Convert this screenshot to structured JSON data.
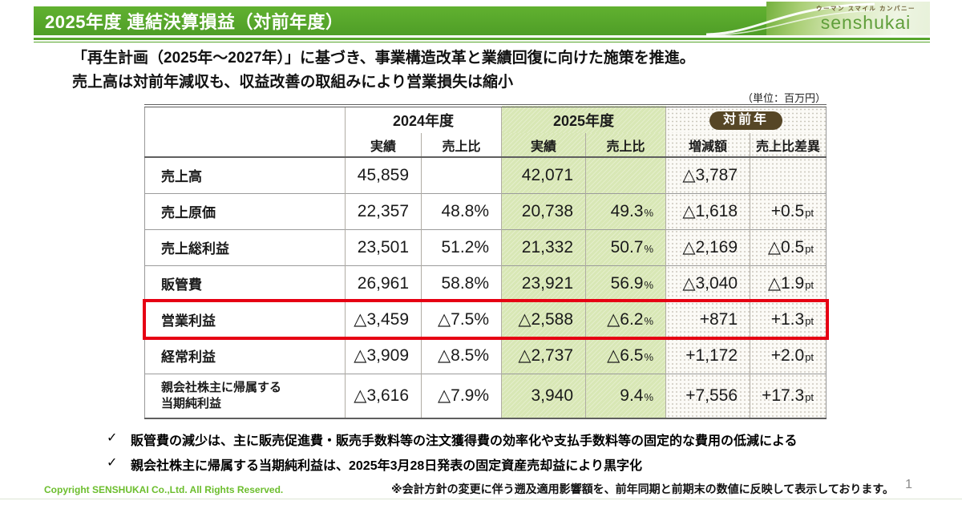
{
  "brand": {
    "accent_green": "#58a72c",
    "logo_tagline": "ウーマン スマイル カンパニー",
    "logo_name": "senshukai"
  },
  "header": {
    "title": "2025年度 連結決算損益（対前年度）"
  },
  "intro": {
    "line1": "「再生計画（2025年～2027年）」に基づき、事業構造改革と業績回復に向けた施策を推進。",
    "line2": "売上高は対前年減収も、収益改善の取組みにより営業損失は縮小"
  },
  "table": {
    "unit_note": "（単位：百万円）",
    "highlight_color": "#e60013",
    "col_groups": [
      {
        "label": "2024年度"
      },
      {
        "label": "2025年度"
      },
      {
        "label": "対前年",
        "badge": true
      }
    ],
    "sub_headers": [
      "実績",
      "売上比",
      "実績",
      "売上比",
      "増減額",
      "売上比差異"
    ],
    "rows": [
      {
        "label": "売上高",
        "cells": [
          [
            "45,859",
            ""
          ],
          [
            "",
            ""
          ],
          [
            "42,071",
            ""
          ],
          [
            "",
            ""
          ],
          [
            "△3,787",
            ""
          ],
          [
            "",
            ""
          ]
        ]
      },
      {
        "label": "売上原価",
        "cells": [
          [
            "22,357",
            ""
          ],
          [
            "48.8%",
            ""
          ],
          [
            "20,738",
            ""
          ],
          [
            "49.3",
            "%"
          ],
          [
            "△1,618",
            ""
          ],
          [
            "+0.5",
            "pt"
          ]
        ]
      },
      {
        "label": "売上総利益",
        "cells": [
          [
            "23,501",
            ""
          ],
          [
            "51.2%",
            ""
          ],
          [
            "21,332",
            ""
          ],
          [
            "50.7",
            "%"
          ],
          [
            "△2,169",
            ""
          ],
          [
            "△0.5",
            "pt"
          ]
        ]
      },
      {
        "label": "販管費",
        "cells": [
          [
            "26,961",
            ""
          ],
          [
            "58.8%",
            ""
          ],
          [
            "23,921",
            ""
          ],
          [
            "56.9",
            "%"
          ],
          [
            "△3,040",
            ""
          ],
          [
            "△1.9",
            "pt"
          ]
        ]
      },
      {
        "label": "営業利益",
        "highlight": true,
        "cells": [
          [
            "△3,459",
            ""
          ],
          [
            "△7.5%",
            ""
          ],
          [
            "△2,588",
            ""
          ],
          [
            "△6.2",
            "%"
          ],
          [
            "+871",
            ""
          ],
          [
            "+1.3",
            "pt"
          ]
        ]
      },
      {
        "label": "経常利益",
        "cells": [
          [
            "△3,909",
            ""
          ],
          [
            "△8.5%",
            ""
          ],
          [
            "△2,737",
            ""
          ],
          [
            "△6.5",
            "%"
          ],
          [
            "+1,172",
            ""
          ],
          [
            "+2.0",
            "pt"
          ]
        ]
      },
      {
        "label": "親会社株主に帰属する当期純利益",
        "label_lines": [
          "親会社株主に帰属する",
          "当期純利益"
        ],
        "cells": [
          [
            "△3,616",
            ""
          ],
          [
            "△7.9%",
            ""
          ],
          [
            "3,940",
            ""
          ],
          [
            "9.4",
            "%"
          ],
          [
            "+7,556",
            ""
          ],
          [
            "+17.3",
            "pt"
          ]
        ]
      }
    ]
  },
  "notes": {
    "bullet": "✓",
    "items": [
      "販管費の減少は、主に販売促進費・販売手数料等の注文獲得費の効率化や支払手数料等の固定的な費用の低減による",
      "親会社株主に帰属する当期純利益は、2025年3月28日発表の固定資産売却益により黒字化"
    ]
  },
  "footer": {
    "copyright": "Copyright SENSHUKAI Co.,Ltd. All Rights Reserved.",
    "note": "※会計方針の変更に伴う遡及適用影響額を、前年同期と前期末の数値に反映して表示しております。",
    "page": "1"
  }
}
